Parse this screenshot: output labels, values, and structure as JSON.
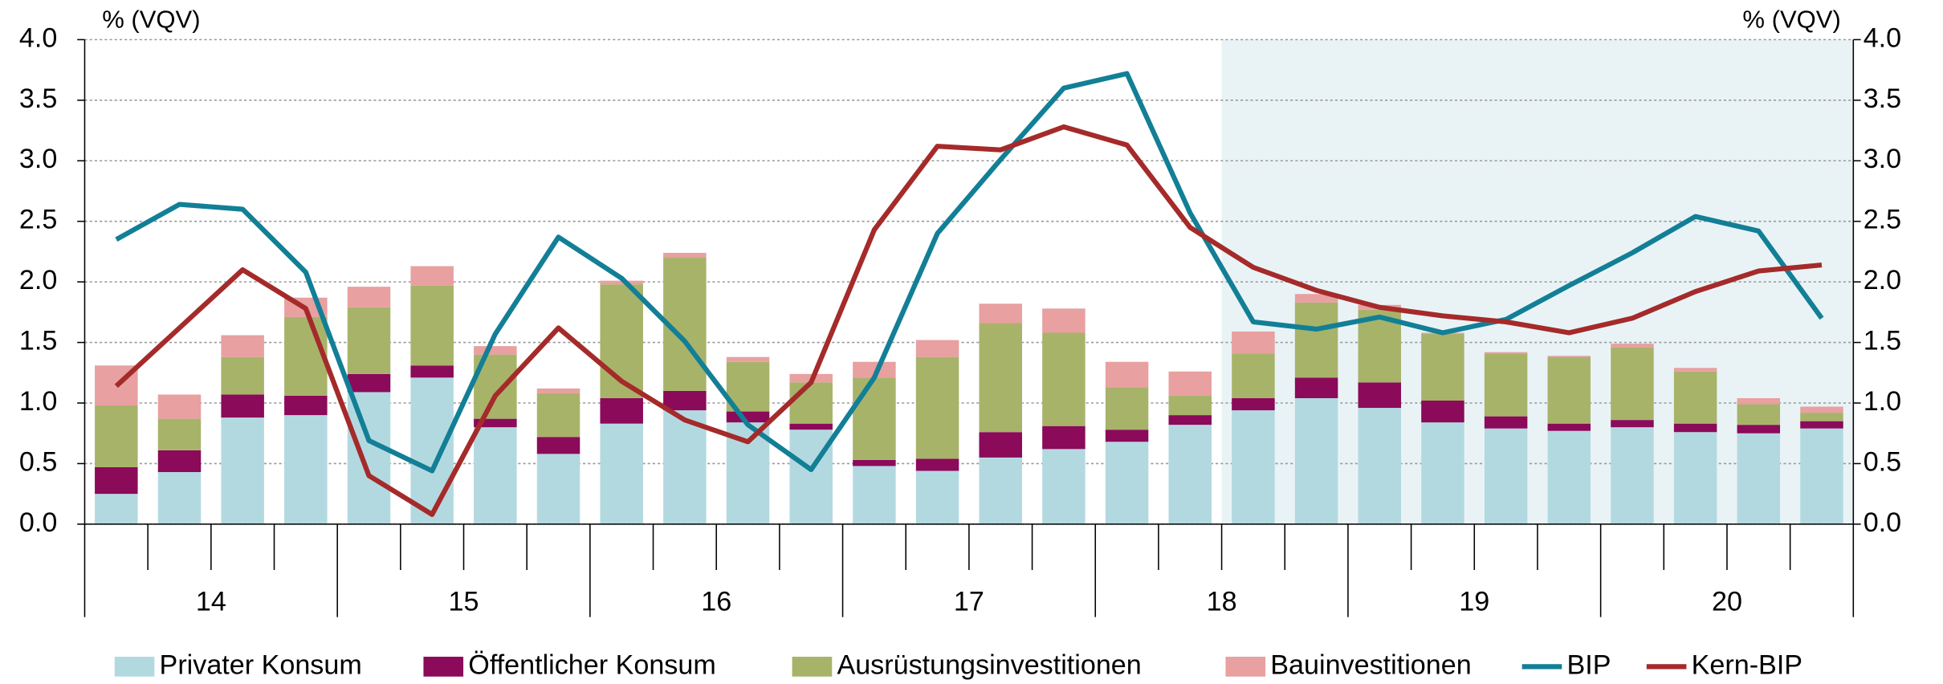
{
  "chart_data": {
    "type": "stacked-bar-line",
    "y_label": "% (VQV)",
    "y2_label": "% (VQV)",
    "groups": [
      "14",
      "15",
      "16",
      "17",
      "18",
      "19",
      "20"
    ],
    "quarters_per_group": 4,
    "forecast_shading": {
      "from_index": 18,
      "color": "#e9f3f6"
    },
    "ylim": [
      0,
      4
    ],
    "yticks": [
      {
        "value": 0,
        "label": "0.0"
      },
      {
        "value": 0.5,
        "label": "0.5"
      },
      {
        "value": 1,
        "label": "1.0"
      },
      {
        "value": 1.5,
        "label": "1.5"
      },
      {
        "value": 2,
        "label": "2.0"
      },
      {
        "value": 2.5,
        "label": "2.5"
      },
      {
        "value": 3,
        "label": "3.0"
      },
      {
        "value": 3.5,
        "label": "3.5"
      },
      {
        "value": 4,
        "label": "4.0"
      }
    ],
    "y2lim": [
      0,
      4
    ],
    "y2ticks": [
      {
        "value": 0,
        "label": "0.0"
      },
      {
        "value": 0.5,
        "label": "0.5"
      },
      {
        "value": 1,
        "label": "1.0"
      },
      {
        "value": 1.5,
        "label": "1.5"
      },
      {
        "value": 2,
        "label": "2.0"
      },
      {
        "value": 2.5,
        "label": "2.5"
      },
      {
        "value": 3,
        "label": "3.0"
      },
      {
        "value": 3.5,
        "label": "3.5"
      },
      {
        "value": 4,
        "label": "4.0"
      }
    ],
    "grid": true,
    "series": [
      {
        "name": "Privater Konsum",
        "kind": "bar",
        "color": "#b3d9e0",
        "values": [
          0.25,
          0.43,
          0.88,
          0.9,
          1.09,
          1.21,
          0.8,
          0.58,
          0.83,
          0.94,
          0.84,
          0.78,
          0.48,
          0.44,
          0.55,
          0.62,
          0.68,
          0.82,
          0.94,
          1.04,
          0.96,
          0.84,
          0.79,
          0.77,
          0.8,
          0.76,
          0.75,
          0.79
        ]
      },
      {
        "name": "Öffentlicher Konsum",
        "kind": "bar",
        "color": "#8b0a5a",
        "values": [
          0.22,
          0.18,
          0.19,
          0.16,
          0.15,
          0.1,
          0.07,
          0.14,
          0.21,
          0.16,
          0.09,
          0.05,
          0.05,
          0.1,
          0.21,
          0.19,
          0.1,
          0.08,
          0.1,
          0.17,
          0.21,
          0.18,
          0.1,
          0.06,
          0.06,
          0.07,
          0.07,
          0.06
        ]
      },
      {
        "name": "Ausrüstungsinvestitionen",
        "kind": "bar",
        "color": "#a8b36a",
        "values": [
          0.51,
          0.26,
          0.31,
          0.65,
          0.55,
          0.66,
          0.53,
          0.36,
          0.94,
          1.1,
          0.41,
          0.34,
          0.68,
          0.84,
          0.9,
          0.77,
          0.35,
          0.16,
          0.37,
          0.62,
          0.6,
          0.55,
          0.52,
          0.55,
          0.6,
          0.43,
          0.17,
          0.07
        ]
      },
      {
        "name": "Bauinvestitionen",
        "kind": "bar",
        "color": "#e8a0a0",
        "values": [
          0.33,
          0.2,
          0.18,
          0.16,
          0.17,
          0.16,
          0.07,
          0.04,
          0.03,
          0.04,
          0.04,
          0.07,
          0.13,
          0.14,
          0.16,
          0.2,
          0.21,
          0.2,
          0.18,
          0.07,
          0.04,
          0.01,
          0.01,
          0.01,
          0.03,
          0.03,
          0.05,
          0.05
        ]
      },
      {
        "name": "BIP",
        "kind": "line",
        "color": "#127f96",
        "values": [
          2.35,
          2.64,
          2.6,
          2.08,
          0.69,
          0.44,
          1.57,
          2.37,
          2.03,
          1.51,
          0.82,
          0.45,
          1.21,
          2.4,
          3.01,
          3.6,
          3.72,
          2.57,
          1.67,
          1.61,
          1.71,
          1.58,
          1.69,
          1.97,
          2.24,
          2.54,
          2.42,
          1.7
        ]
      },
      {
        "name": "Kern-BIP",
        "kind": "line",
        "color": "#a52a2a",
        "values": [
          1.14,
          1.62,
          2.1,
          1.78,
          0.4,
          0.08,
          1.06,
          1.62,
          1.18,
          0.86,
          0.68,
          1.17,
          2.43,
          3.12,
          3.09,
          3.28,
          3.13,
          2.45,
          2.12,
          1.93,
          1.79,
          1.72,
          1.67,
          1.58,
          1.7,
          1.92,
          2.09,
          2.14
        ]
      }
    ]
  }
}
